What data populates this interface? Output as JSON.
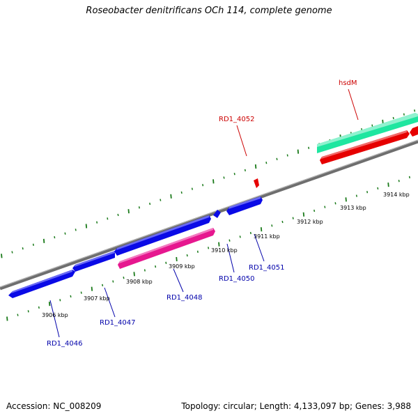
{
  "title": "Roseobacter denitrificans OCh 114, complete genome",
  "footer": {
    "accession": "Accession: NC_008209",
    "info": "Topology: circular; Length: 4,133,097 bp; Genes: 3,988"
  },
  "colors": {
    "backbone": "#808080",
    "tick": "#1a7a1a",
    "blue_gene": "#0a0ae6",
    "pink_gene": "#e6178f",
    "red_gene": "#e60000",
    "green_gene": "#1fe6a0",
    "blue_label": "#0000aa",
    "red_label": "#cc0000"
  },
  "scale_labels": [
    "3906 kbp",
    "3907 kbp",
    "3908 kbp",
    "3909 kbp",
    "3910 kbp",
    "3911 kbp",
    "3912 kbp",
    "3913 kbp",
    "3914 kbp"
  ],
  "genes": [
    {
      "label": "RD1_4046",
      "color": "blue"
    },
    {
      "label": "RD1_4047",
      "color": "blue"
    },
    {
      "label": "RD1_4048",
      "color": "pink"
    },
    {
      "label": "RD1_4050",
      "color": "blue"
    },
    {
      "label": "RD1_4051",
      "color": "blue"
    },
    {
      "label": "RD1_4052",
      "color": "red"
    },
    {
      "label": "hsdM",
      "color": "green"
    }
  ]
}
